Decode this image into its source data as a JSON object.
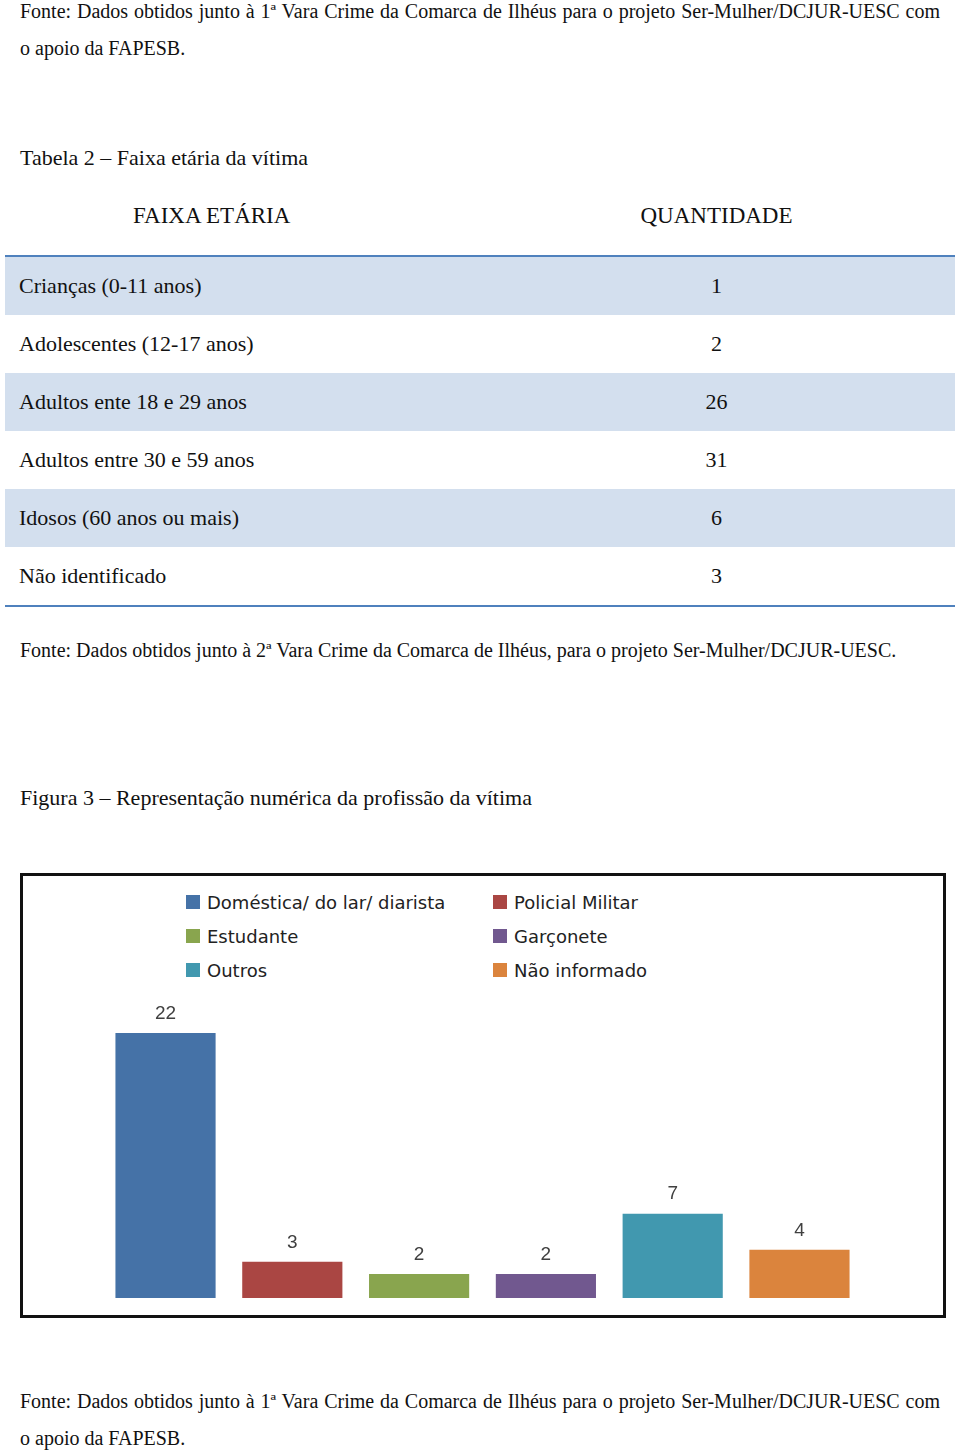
{
  "page_top_source": "Fonte: Dados obtidos junto à 1ª Vara Crime da Comarca de Ilhéus para o projeto Ser-Mulher/DCJUR-UESC com o apoio da FAPESB.",
  "table": {
    "title": "Tabela 2 – Faixa etária da vítima",
    "header": [
      "FAIXA ETÁRIA",
      "QUANTIDADE"
    ],
    "rows": [
      [
        "Crianças (0-11 anos)",
        1
      ],
      [
        "Adolescentes (12-17 anos)",
        2
      ],
      [
        "Adultos ente 18 e 29 anos",
        26
      ],
      [
        "Adultos entre 30 e 59 anos",
        31
      ],
      [
        "Idosos (60 anos ou mais)",
        6
      ],
      [
        "Não identificado",
        3
      ]
    ],
    "source": "Fonte: Dados obtidos junto à 2ª Vara Crime da Comarca de Ilhéus, para o projeto Ser-Mulher/DCJUR-UESC."
  },
  "figure": {
    "title": "Figura 3 – Representação numérica da profissão da vítima",
    "source": "Fonte: Dados obtidos junto à 1ª Vara Crime da Comarca de Ilhéus para o projeto Ser-Mulher/DCJUR-UESC com o apoio da FAPESB."
  },
  "chart_data": {
    "type": "bar",
    "categories": [
      null
    ],
    "series": [
      {
        "name": "Doméstica/ do lar/ diarista",
        "color": "#4572a7",
        "values": [
          22
        ]
      },
      {
        "name": "Policial Militar",
        "color": "#aa4643",
        "values": [
          3
        ]
      },
      {
        "name": "Estudante",
        "color": "#89a54e",
        "values": [
          2
        ]
      },
      {
        "name": "Garçonete",
        "color": "#71588f",
        "values": [
          2
        ]
      },
      {
        "name": "Outros",
        "color": "#4198af",
        "values": [
          7
        ]
      },
      {
        "name": "Não informado",
        "color": "#db843d",
        "values": [
          4
        ]
      }
    ],
    "ylim": [
      0,
      22
    ],
    "grid": false,
    "legend": "top",
    "data_labels": true,
    "tick_labels": false
  }
}
